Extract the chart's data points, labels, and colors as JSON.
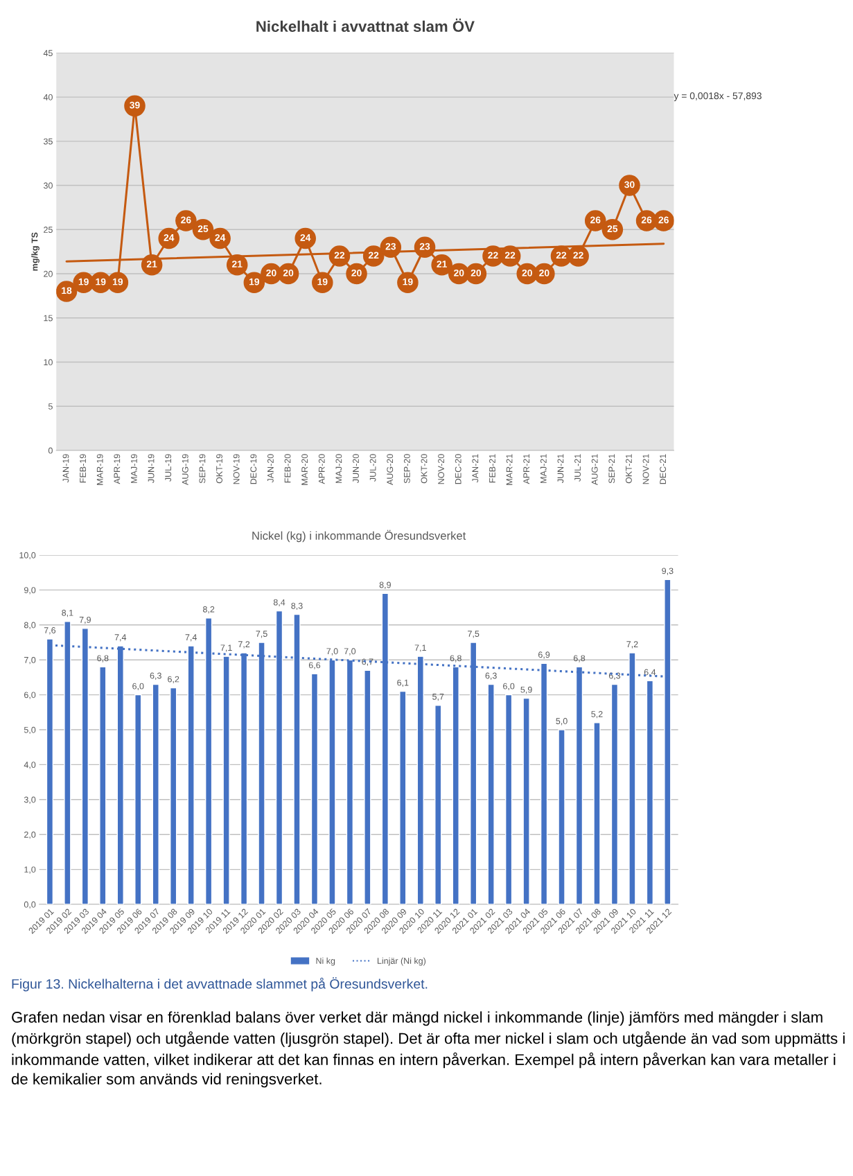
{
  "chart_data": [
    {
      "type": "line",
      "title": "Nickelhalt i avvattnat slam ÖV",
      "ylabel": "mg/kg TS",
      "categories": [
        "JAN-19",
        "FEB-19",
        "MAR-19",
        "APR-19",
        "MAJ-19",
        "JUN-19",
        "JUL-19",
        "AUG-19",
        "SEP-19",
        "OKT-19",
        "NOV-19",
        "DEC-19",
        "JAN-20",
        "FEB-20",
        "MAR-20",
        "APR-20",
        "MAJ-20",
        "JUN-20",
        "JUL-20",
        "AUG-20",
        "SEP-20",
        "OKT-20",
        "NOV-20",
        "DEC-20",
        "JAN-21",
        "FEB-21",
        "MAR-21",
        "APR-21",
        "MAJ-21",
        "JUN-21",
        "JUL-21",
        "AUG-21",
        "SEP-21",
        "OKT-21",
        "NOV-21",
        "DEC-21"
      ],
      "series": [
        {
          "color": "#c55a11",
          "marker": "circle",
          "values": [
            18,
            19,
            19,
            19,
            39,
            21,
            24,
            26,
            25,
            24,
            21,
            19,
            20,
            20,
            24,
            19,
            22,
            20,
            22,
            23,
            19,
            23,
            21,
            20,
            20,
            22,
            22,
            20,
            20,
            22,
            22,
            26,
            25,
            30,
            26,
            26
          ],
          "value_labels": [
            "18",
            "19",
            "19",
            "19",
            "39",
            "21",
            "24",
            "26",
            "25",
            "24",
            "21",
            "19",
            "20",
            "20",
            "24",
            "19",
            "22",
            "20",
            "22",
            "23",
            "19",
            "23",
            "21",
            "20",
            "20",
            "22",
            "22",
            "20",
            "20",
            "22",
            "22",
            "26",
            "25",
            "30",
            "26",
            "26"
          ]
        },
        {
          "color": "#c55a11",
          "line_style": "solid",
          "values": [
            21.4,
            null,
            null,
            null,
            null,
            null,
            null,
            null,
            null,
            null,
            null,
            null,
            null,
            null,
            null,
            null,
            null,
            null,
            null,
            null,
            null,
            null,
            null,
            null,
            null,
            null,
            null,
            null,
            null,
            null,
            null,
            null,
            null,
            null,
            null,
            23.4
          ]
        }
      ],
      "ylim": [
        0,
        45
      ],
      "yticks": [
        0,
        5,
        10,
        15,
        20,
        25,
        30,
        35,
        40,
        45
      ],
      "grid": "y",
      "annotations": [
        "y = 0,0018x - 57,893"
      ]
    },
    {
      "type": "bar",
      "title": "Nickel (kg) i inkommande Öresundsverket",
      "categories": [
        "2019 01",
        "2019 02",
        "2019 03",
        "2019 04",
        "2019 05",
        "2019 06",
        "2019 07",
        "2019 08",
        "2019 09",
        "2019 10",
        "2019 11",
        "2019 12",
        "2020 01",
        "2020 02",
        "2020 03",
        "2020 04",
        "2020 05",
        "2020 06",
        "2020 07",
        "2020 08",
        "2020 09",
        "2020 10",
        "2020 11",
        "2020 12",
        "2021 01",
        "2021 02",
        "2021 03",
        "2021 04",
        "2021 05",
        "2021 06",
        "2021 07",
        "2021 08",
        "2021 09",
        "2021 10",
        "2021 11",
        "2021 12"
      ],
      "series": [
        {
          "name": "Ni kg",
          "color": "#4472c4",
          "values": [
            7.6,
            8.1,
            7.9,
            6.8,
            7.4,
            6.0,
            6.3,
            6.2,
            7.4,
            8.2,
            7.1,
            7.2,
            7.5,
            8.4,
            8.3,
            6.6,
            7.0,
            7.0,
            6.7,
            8.9,
            6.1,
            7.1,
            5.7,
            6.8,
            7.5,
            6.3,
            6.0,
            5.9,
            6.9,
            5.0,
            6.8,
            5.2,
            6.3,
            7.2,
            6.4,
            9.3
          ],
          "value_labels": [
            "7,6",
            "8,1",
            "7,9",
            "6,8",
            "7,4",
            "6,0",
            "6,3",
            "6,2",
            "7,4",
            "8,2",
            "7,1",
            "7,2",
            "7,5",
            "8,4",
            "8,3",
            "6,6",
            "7,0",
            "7,0",
            "6,7",
            "8,9",
            "6,1",
            "7,1",
            "5,7",
            "6,8",
            "7,5",
            "6,3",
            "6,0",
            "5,9",
            "6,9",
            "5,0",
            "6,8",
            "5,2",
            "6,3",
            "7,2",
            "6,4",
            "9,3"
          ]
        },
        {
          "name": "Linjär (Ni kg)",
          "type": "line",
          "color": "#4472c4",
          "line_style": "dotted",
          "values": [
            7.42,
            null,
            null,
            null,
            null,
            null,
            null,
            null,
            null,
            null,
            null,
            null,
            null,
            null,
            null,
            null,
            null,
            null,
            null,
            null,
            null,
            null,
            null,
            null,
            null,
            null,
            null,
            null,
            null,
            null,
            null,
            null,
            null,
            null,
            null,
            6.52
          ]
        }
      ],
      "ylim": [
        0,
        10
      ],
      "yticks": [
        {
          "value": 0,
          "label": "0,0"
        },
        {
          "value": 1,
          "label": "1,0"
        },
        {
          "value": 2,
          "label": "2,0"
        },
        {
          "value": 3,
          "label": "3,0"
        },
        {
          "value": 4,
          "label": "4,0"
        },
        {
          "value": 5,
          "label": "5,0"
        },
        {
          "value": 6,
          "label": "6,0"
        },
        {
          "value": 7,
          "label": "7,0"
        },
        {
          "value": 8,
          "label": "8,0"
        },
        {
          "value": 9,
          "label": "9,0"
        },
        {
          "value": 10,
          "label": "10,0"
        }
      ],
      "grid": "y",
      "legend": "bottom",
      "annotations": [
        "Figur 13. Nickelhalterna i det avvattnade slammet på Öresundsverket.",
        "Grafen nedan visar en förenklad balans över verket där mängd nickel i inkommande (linje) jämförs med mängder i slam (mörkgrön stapel) och utgående vatten (ljusgrön stapel). Det är ofta mer nickel i slam och utgående än vad som uppmätts i inkommande vatten, vilket indikerar att det kan finnas en intern påverkan. Exempel på intern påverkan kan vara metaller i de kemikalier som används vid reningsverket."
      ]
    }
  ]
}
